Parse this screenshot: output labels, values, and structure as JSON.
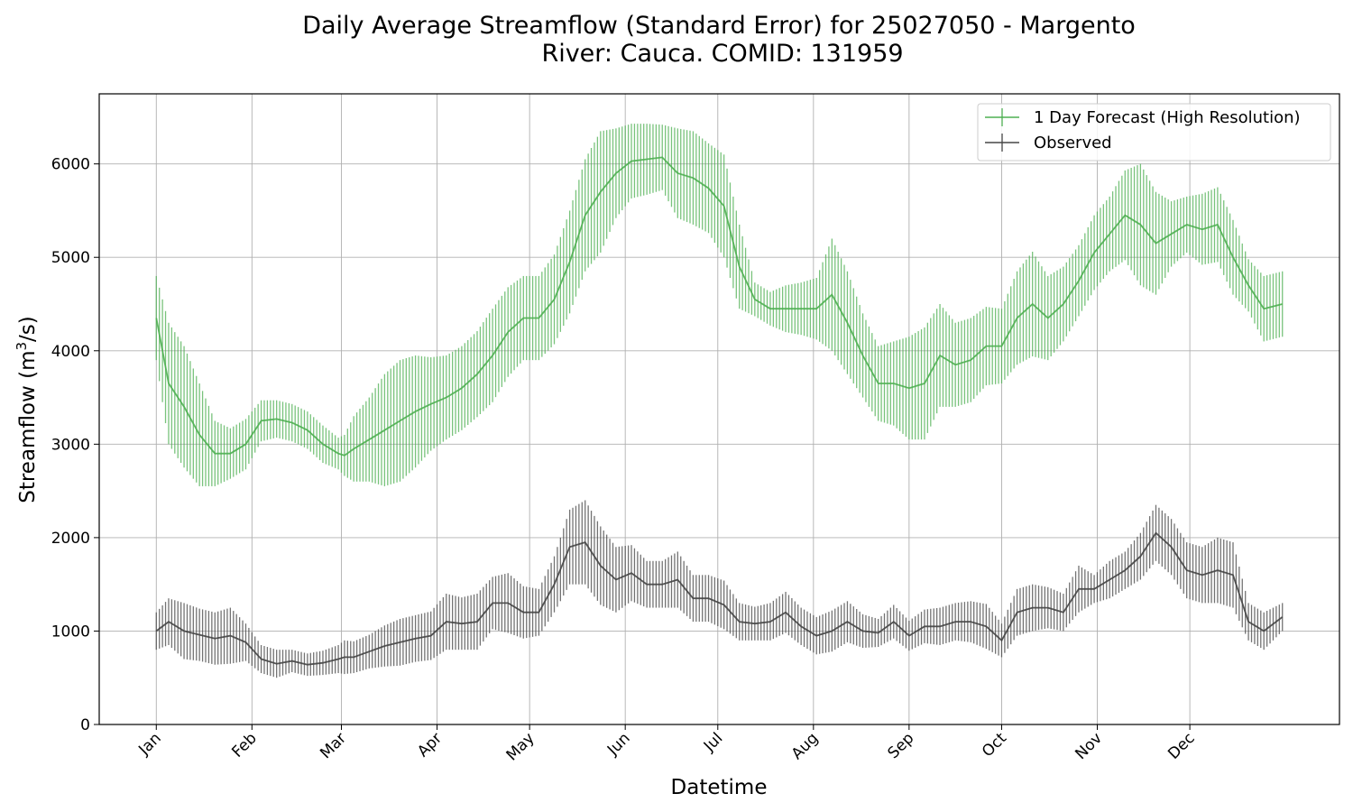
{
  "chart_data": {
    "type": "line",
    "title": "Daily Average Streamflow (Standard Error) for 25027050 - Margento",
    "subtitle": "River: Cauca. COMID: 131959",
    "xlabel": "Datetime",
    "ylabel": "Streamflow (m",
    "ylabel_sup": "3",
    "ylabel_suffix": "/s)",
    "ylim": [
      0,
      6750
    ],
    "yticks": [
      0,
      1000,
      2000,
      3000,
      4000,
      5000,
      6000
    ],
    "xticks": [
      {
        "label": "Jan",
        "day": 1
      },
      {
        "label": "Feb",
        "day": 32
      },
      {
        "label": "Mar",
        "day": 61
      },
      {
        "label": "Apr",
        "day": 92
      },
      {
        "label": "May",
        "day": 122
      },
      {
        "label": "Jun",
        "day": 153
      },
      {
        "label": "Jul",
        "day": 183
      },
      {
        "label": "Aug",
        "day": 214
      },
      {
        "label": "Sep",
        "day": 245
      },
      {
        "label": "Oct",
        "day": 275
      },
      {
        "label": "Nov",
        "day": 306
      },
      {
        "label": "Dec",
        "day": 336
      }
    ],
    "xlim": [
      -17.5,
      384.5
    ],
    "grid": true,
    "legend_position": "top-right",
    "x_day_of_year": [
      1,
      5,
      10,
      15,
      20,
      25,
      30,
      35,
      40,
      45,
      50,
      55,
      60,
      62,
      65,
      70,
      75,
      80,
      85,
      90,
      95,
      100,
      105,
      110,
      115,
      120,
      125,
      130,
      135,
      140,
      145,
      150,
      155,
      160,
      165,
      170,
      175,
      180,
      185,
      190,
      195,
      200,
      205,
      210,
      215,
      220,
      225,
      230,
      235,
      240,
      245,
      250,
      255,
      260,
      265,
      270,
      275,
      280,
      285,
      290,
      295,
      300,
      305,
      310,
      315,
      320,
      325,
      330,
      335,
      340,
      345,
      350,
      355,
      360,
      366
    ],
    "series": [
      {
        "name": "1 Day Forecast (High Resolution)",
        "color": "#4caf50",
        "values": [
          4350,
          3650,
          3400,
          3100,
          2900,
          2900,
          3000,
          3250,
          3270,
          3230,
          3150,
          3000,
          2900,
          2880,
          2950,
          3050,
          3150,
          3250,
          3350,
          3430,
          3500,
          3600,
          3750,
          3950,
          4200,
          4350,
          4350,
          4550,
          4950,
          5450,
          5700,
          5900,
          6030,
          6050,
          6070,
          5900,
          5850,
          5740,
          5550,
          4900,
          4550,
          4450,
          4450,
          4450,
          4450,
          4600,
          4300,
          3950,
          3650,
          3650,
          3600,
          3650,
          3950,
          3850,
          3900,
          4050,
          4050,
          4350,
          4500,
          4350,
          4500,
          4750,
          5050,
          5250,
          5450,
          5350,
          5150,
          5250,
          5350,
          5300,
          5350,
          5000,
          4700,
          4450,
          4500
        ],
        "err": [
          450,
          650,
          650,
          550,
          350,
          270,
          270,
          220,
          200,
          200,
          200,
          200,
          170,
          220,
          350,
          450,
          600,
          650,
          600,
          500,
          450,
          450,
          460,
          500,
          480,
          450,
          450,
          480,
          550,
          600,
          650,
          480,
          400,
          380,
          350,
          480,
          500,
          480,
          550,
          450,
          180,
          180,
          250,
          280,
          330,
          600,
          550,
          450,
          400,
          450,
          550,
          600,
          550,
          450,
          450,
          420,
          400,
          500,
          560,
          450,
          400,
          380,
          400,
          400,
          480,
          650,
          550,
          350,
          300,
          380,
          400,
          400,
          280,
          350,
          350
        ]
      },
      {
        "name": "Observed",
        "color": "#444444",
        "values": [
          1000,
          1100,
          1000,
          960,
          920,
          950,
          880,
          700,
          650,
          680,
          640,
          660,
          700,
          720,
          720,
          780,
          840,
          880,
          920,
          950,
          1100,
          1080,
          1100,
          1300,
          1300,
          1200,
          1200,
          1500,
          1900,
          1950,
          1700,
          1550,
          1620,
          1500,
          1500,
          1550,
          1350,
          1350,
          1280,
          1100,
          1080,
          1100,
          1200,
          1050,
          950,
          1000,
          1100,
          1000,
          980,
          1100,
          950,
          1050,
          1050,
          1100,
          1100,
          1050,
          900,
          1200,
          1250,
          1250,
          1200,
          1450,
          1450,
          1550,
          1650,
          1800,
          2050,
          1900,
          1650,
          1600,
          1650,
          1600,
          1100,
          1000,
          1150
        ],
        "err": [
          200,
          250,
          300,
          280,
          280,
          300,
          200,
          150,
          150,
          120,
          120,
          130,
          150,
          180,
          170,
          180,
          220,
          250,
          250,
          260,
          300,
          280,
          300,
          280,
          320,
          280,
          250,
          300,
          400,
          450,
          420,
          350,
          300,
          250,
          250,
          300,
          250,
          250,
          260,
          200,
          180,
          200,
          220,
          200,
          200,
          220,
          220,
          180,
          150,
          180,
          160,
          180,
          200,
          200,
          220,
          240,
          180,
          250,
          250,
          220,
          200,
          250,
          150,
          200,
          200,
          250,
          300,
          300,
          300,
          300,
          350,
          350,
          200,
          200,
          150
        ]
      }
    ]
  }
}
